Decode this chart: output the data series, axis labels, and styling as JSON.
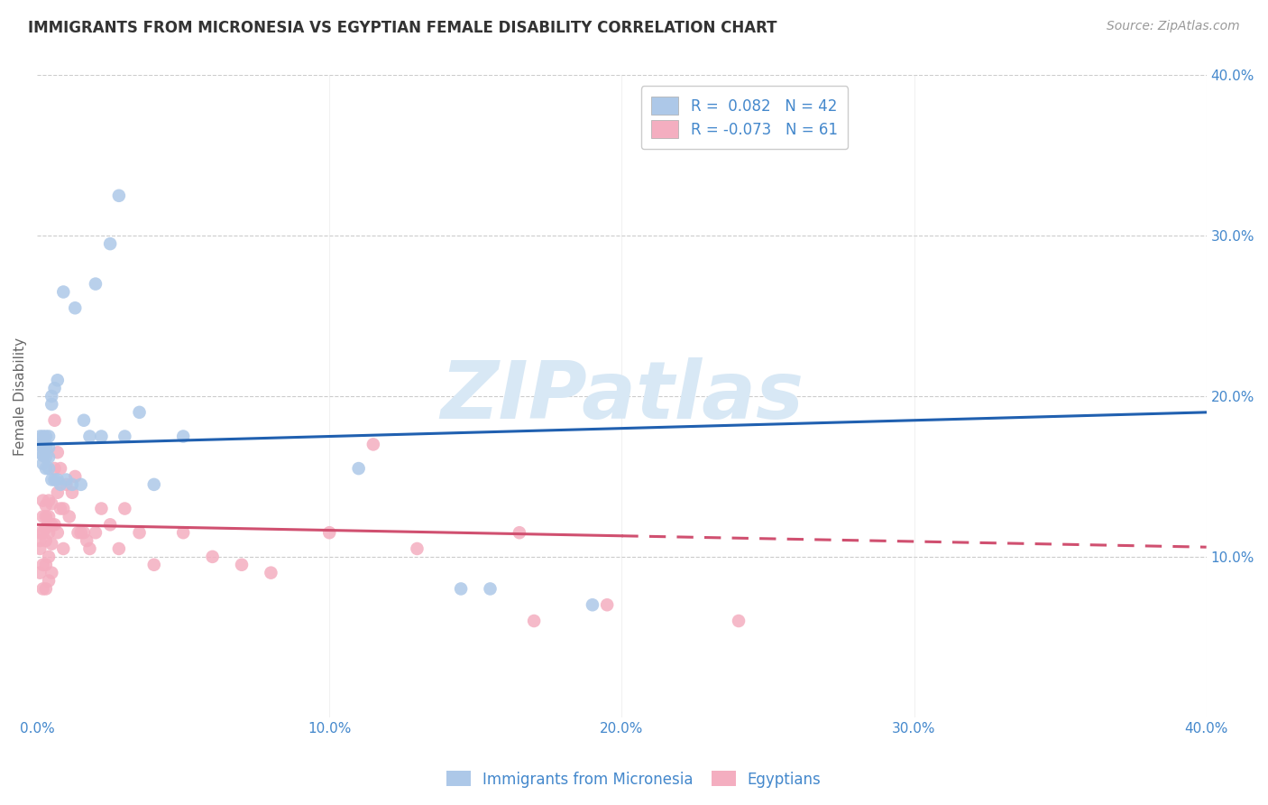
{
  "title": "IMMIGRANTS FROM MICRONESIA VS EGYPTIAN FEMALE DISABILITY CORRELATION CHART",
  "source": "Source: ZipAtlas.com",
  "ylabel": "Female Disability",
  "legend_blue_r": "R =  0.082",
  "legend_blue_n": "N = 42",
  "legend_pink_r": "R = -0.073",
  "legend_pink_n": "N = 61",
  "legend_label_blue": "Immigrants from Micronesia",
  "legend_label_pink": "Egyptians",
  "blue_color": "#adc8e8",
  "pink_color": "#f4aec0",
  "blue_line_color": "#2060b0",
  "pink_line_color": "#d05070",
  "axis_label_color": "#4488cc",
  "watermark_color": "#d8e8f5",
  "xlim": [
    0.0,
    0.4
  ],
  "ylim": [
    0.0,
    0.4
  ],
  "yticks": [
    0.1,
    0.2,
    0.3,
    0.4
  ],
  "xticks": [
    0.0,
    0.1,
    0.2,
    0.3,
    0.4
  ],
  "blue_line_x0": 0.0,
  "blue_line_y0": 0.17,
  "blue_line_x1": 0.4,
  "blue_line_y1": 0.19,
  "pink_line_solid_x0": 0.0,
  "pink_line_solid_y0": 0.12,
  "pink_line_solid_x1": 0.2,
  "pink_line_solid_y1": 0.113,
  "pink_line_dash_x0": 0.2,
  "pink_line_dash_y0": 0.113,
  "pink_line_dash_x1": 0.4,
  "pink_line_dash_y1": 0.106,
  "blue_scatter_x": [
    0.001,
    0.001,
    0.001,
    0.002,
    0.002,
    0.002,
    0.002,
    0.003,
    0.003,
    0.003,
    0.003,
    0.004,
    0.004,
    0.004,
    0.004,
    0.005,
    0.005,
    0.005,
    0.006,
    0.006,
    0.007,
    0.007,
    0.008,
    0.009,
    0.01,
    0.012,
    0.013,
    0.015,
    0.016,
    0.018,
    0.02,
    0.022,
    0.025,
    0.028,
    0.03,
    0.035,
    0.04,
    0.05,
    0.11,
    0.145,
    0.155,
    0.19
  ],
  "blue_scatter_y": [
    0.175,
    0.17,
    0.165,
    0.175,
    0.168,
    0.163,
    0.158,
    0.175,
    0.168,
    0.162,
    0.155,
    0.175,
    0.168,
    0.162,
    0.155,
    0.2,
    0.195,
    0.148,
    0.205,
    0.148,
    0.21,
    0.148,
    0.145,
    0.265,
    0.148,
    0.145,
    0.255,
    0.145,
    0.185,
    0.175,
    0.27,
    0.175,
    0.295,
    0.325,
    0.175,
    0.19,
    0.145,
    0.175,
    0.155,
    0.08,
    0.08,
    0.07
  ],
  "pink_scatter_x": [
    0.001,
    0.001,
    0.001,
    0.001,
    0.002,
    0.002,
    0.002,
    0.002,
    0.002,
    0.003,
    0.003,
    0.003,
    0.003,
    0.003,
    0.003,
    0.004,
    0.004,
    0.004,
    0.004,
    0.004,
    0.005,
    0.005,
    0.005,
    0.005,
    0.006,
    0.006,
    0.006,
    0.007,
    0.007,
    0.007,
    0.008,
    0.008,
    0.009,
    0.009,
    0.01,
    0.011,
    0.012,
    0.013,
    0.014,
    0.015,
    0.016,
    0.017,
    0.018,
    0.02,
    0.022,
    0.025,
    0.028,
    0.03,
    0.035,
    0.04,
    0.05,
    0.06,
    0.07,
    0.08,
    0.1,
    0.115,
    0.13,
    0.165,
    0.17,
    0.195,
    0.24
  ],
  "pink_scatter_y": [
    0.115,
    0.11,
    0.105,
    0.09,
    0.135,
    0.125,
    0.115,
    0.095,
    0.08,
    0.132,
    0.125,
    0.118,
    0.11,
    0.095,
    0.08,
    0.135,
    0.125,
    0.115,
    0.1,
    0.085,
    0.133,
    0.12,
    0.108,
    0.09,
    0.185,
    0.155,
    0.12,
    0.165,
    0.14,
    0.115,
    0.155,
    0.13,
    0.13,
    0.105,
    0.145,
    0.125,
    0.14,
    0.15,
    0.115,
    0.115,
    0.115,
    0.11,
    0.105,
    0.115,
    0.13,
    0.12,
    0.105,
    0.13,
    0.115,
    0.095,
    0.115,
    0.1,
    0.095,
    0.09,
    0.115,
    0.17,
    0.105,
    0.115,
    0.06,
    0.07,
    0.06
  ]
}
